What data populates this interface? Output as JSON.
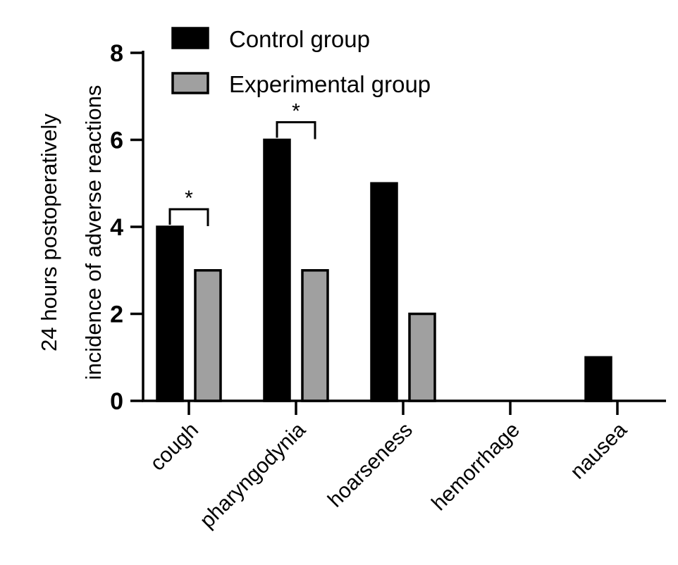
{
  "chart_data": {
    "type": "bar",
    "title": "",
    "xlabel": "",
    "ylabel_lines": [
      "24 hours postoperatively",
      "incidence of adverse reactions"
    ],
    "categories": [
      "cough",
      "pharyngodynia",
      "hoarseness",
      "hemorrhage",
      "nausea"
    ],
    "series": [
      {
        "name": "Control group",
        "color": "#000000",
        "values": [
          4,
          6,
          5,
          0,
          1
        ]
      },
      {
        "name": "Experimental group",
        "color": "#a0a0a0",
        "values": [
          3,
          3,
          2,
          0,
          0
        ]
      }
    ],
    "ylim": [
      0,
      8
    ],
    "yticks": [
      0,
      2,
      4,
      6,
      8
    ],
    "grid": false,
    "legend_position": "top-left",
    "annotations": [
      {
        "category": "cough",
        "label": "*"
      },
      {
        "category": "pharyngodynia",
        "label": "*"
      }
    ]
  }
}
